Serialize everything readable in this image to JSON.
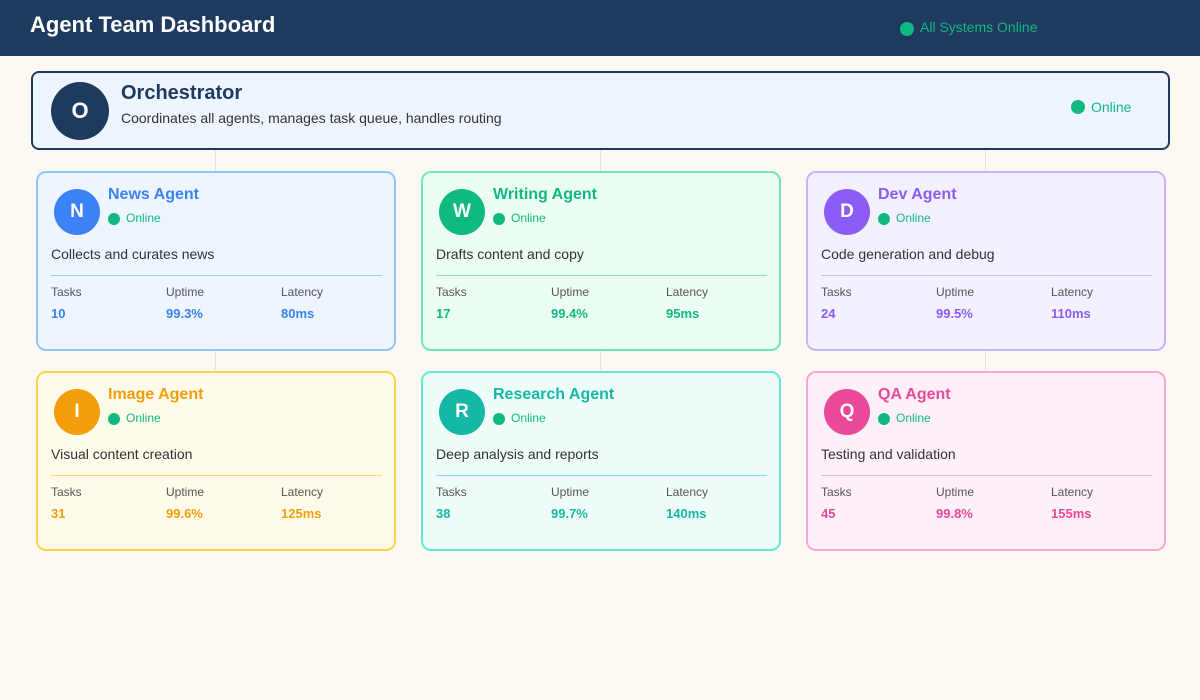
{
  "header": {
    "title": "Agent Team Dashboard",
    "system_status": "All Systems Online"
  },
  "orchestrator": {
    "initial": "O",
    "name": "Orchestrator",
    "description": "Coordinates all agents, manages task queue, handles routing",
    "status": "Online"
  },
  "stat_labels": {
    "tasks": "Tasks",
    "uptime": "Uptime",
    "latency": "Latency"
  },
  "colors": {
    "online": "#10b981",
    "header_bg": "#1e3a5f"
  },
  "agents": [
    {
      "initial": "N",
      "name": "News Agent",
      "status": "Online",
      "description": "Collects and curates news",
      "tasks": "10",
      "uptime": "99.3%",
      "latency": "80ms",
      "accent": "#3b82f6",
      "border": "#93c5fd",
      "bg": "#eef5ff",
      "divider": "#9fd0ea"
    },
    {
      "initial": "W",
      "name": "Writing Agent",
      "status": "Online",
      "description": "Drafts content and copy",
      "tasks": "17",
      "uptime": "99.4%",
      "latency": "95ms",
      "accent": "#10b981",
      "border": "#6ee7b7",
      "bg": "#ecfdf3",
      "divider": "#7ee3c4"
    },
    {
      "initial": "D",
      "name": "Dev Agent",
      "status": "Online",
      "description": "Code generation and debug",
      "tasks": "24",
      "uptime": "99.5%",
      "latency": "110ms",
      "accent": "#8b5cf6",
      "border": "#c4b5fd",
      "bg": "#f3f0ff",
      "divider": "#c9bff5"
    },
    {
      "initial": "I",
      "name": "Image Agent",
      "status": "Online",
      "description": "Visual content creation",
      "tasks": "31",
      "uptime": "99.6%",
      "latency": "125ms",
      "accent": "#f59e0b",
      "border": "#fcd34d",
      "bg": "#fffbeb",
      "divider": "#fbd96b"
    },
    {
      "initial": "R",
      "name": "Research Agent",
      "status": "Online",
      "description": "Deep analysis and reports",
      "tasks": "38",
      "uptime": "99.7%",
      "latency": "140ms",
      "accent": "#14b8a6",
      "border": "#5eead4",
      "bg": "#effdfa",
      "divider": "#7fe3d6"
    },
    {
      "initial": "Q",
      "name": "QA Agent",
      "status": "Online",
      "description": "Testing and validation",
      "tasks": "45",
      "uptime": "99.8%",
      "latency": "155ms",
      "accent": "#ec4899",
      "border": "#f9a8d4",
      "bg": "#fdf0f8",
      "divider": "#f5b3d6"
    }
  ]
}
